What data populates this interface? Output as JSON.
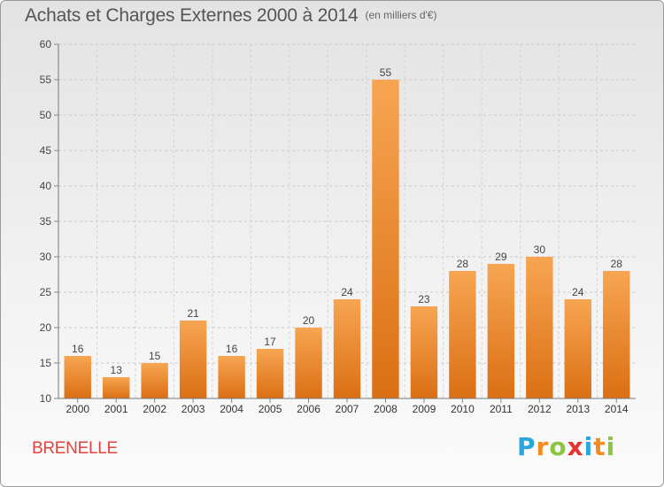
{
  "title": "Achats et Charges Externes 2000 à 2014",
  "subtitle": "(en milliers d'€)",
  "commune": "BRENELLE",
  "brand": {
    "letters": [
      "P",
      "r",
      "o",
      "x",
      "i",
      "t",
      "i"
    ],
    "colors": [
      "#2aa6de",
      "#f28c1c",
      "#8cc63f",
      "#e3342f",
      "#2aa6de",
      "#f28c1c",
      "#8cc63f"
    ]
  },
  "chart_data": {
    "type": "bar",
    "title": "Achats et Charges Externes 2000 à 2014",
    "categories": [
      "2000",
      "2001",
      "2002",
      "2003",
      "2004",
      "2005",
      "2006",
      "2007",
      "2008",
      "2009",
      "2010",
      "2011",
      "2012",
      "2013",
      "2014"
    ],
    "values": [
      16,
      13,
      15,
      21,
      16,
      17,
      20,
      24,
      55,
      23,
      28,
      29,
      30,
      24,
      28
    ],
    "ylim": [
      10,
      60
    ],
    "yticks": [
      10,
      15,
      20,
      25,
      30,
      35,
      40,
      45,
      50,
      55,
      60
    ],
    "grid": true,
    "bar_color_top": "#f7a552",
    "bar_color_bottom": "#db6f14"
  }
}
